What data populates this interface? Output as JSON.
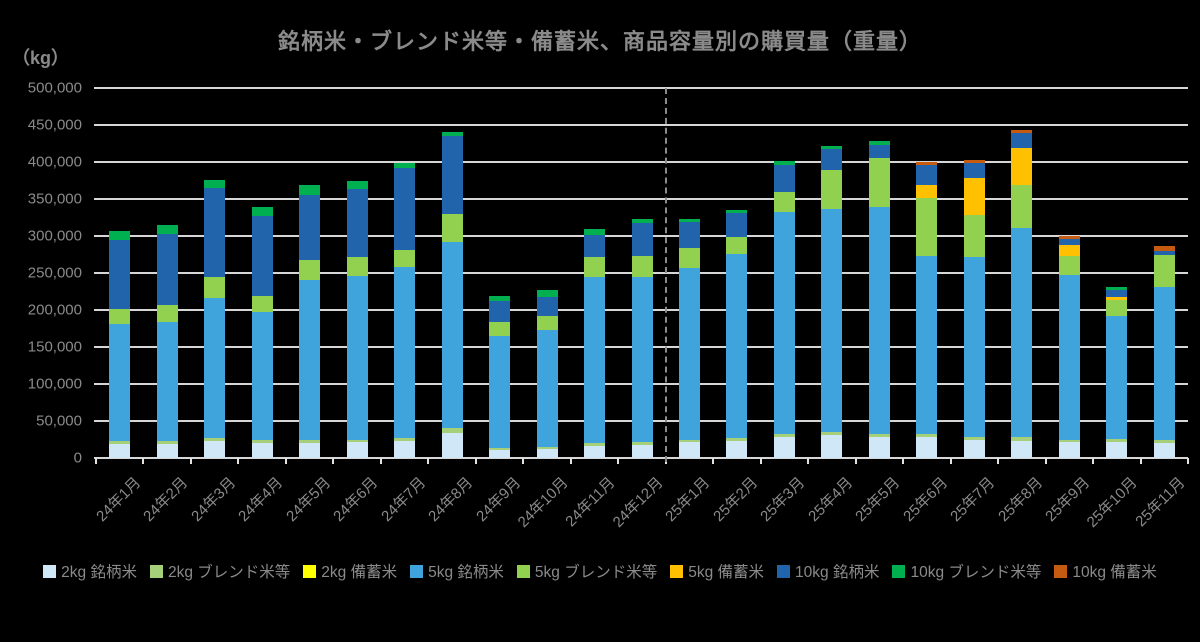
{
  "title": "銘柄米・ブレンド米等・備蓄米、商品容量別の購買量（重量）",
  "unit_label": "（kg）",
  "colors": {
    "background": "#000000",
    "text_gray": "#8a8a8a",
    "gridline": "#d6d6d6",
    "separator_line": "#8c8c8c"
  },
  "chart_data": {
    "type": "bar",
    "stacked": true,
    "title": "銘柄米・ブレンド米等・備蓄米、商品容量別の購買量（重量）",
    "unit_label": "（kg）",
    "xlabel": "",
    "ylabel": "kg",
    "ylim": [
      0,
      500000
    ],
    "y_ticks": [
      0,
      50000,
      100000,
      150000,
      200000,
      250000,
      300000,
      350000,
      400000,
      450000,
      500000
    ],
    "grid": true,
    "legend_position": "bottom",
    "separator_after_category": "24年12月",
    "categories": [
      "24年1月",
      "24年2月",
      "24年3月",
      "24年4月",
      "24年5月",
      "24年6月",
      "24年7月",
      "24年8月",
      "24年9月",
      "24年10月",
      "24年11月",
      "24年12月",
      "25年1月",
      "25年2月",
      "25年3月",
      "25年4月",
      "25年5月",
      "25年6月",
      "25年7月",
      "25年8月",
      "25年9月",
      "25年10月",
      "25年11月"
    ],
    "series": [
      {
        "name": "2kg 銘柄米",
        "color": "#cfe7f7",
        "values": [
          19000,
          19000,
          22500,
          20000,
          20000,
          21000,
          22500,
          34000,
          11000,
          12000,
          16000,
          18000,
          21000,
          23000,
          28000,
          31000,
          29000,
          28000,
          24000,
          23000,
          21000,
          21000,
          20000
        ]
      },
      {
        "name": "2kg ブレンド米等",
        "color": "#a6cf7a",
        "values": [
          4500,
          4500,
          4500,
          4500,
          4000,
          4000,
          4000,
          7000,
          3000,
          3500,
          4000,
          4000,
          4000,
          3500,
          4000,
          4000,
          4000,
          4000,
          5000,
          6000,
          4000,
          5000,
          5000
        ]
      },
      {
        "name": "2kg 備蓄米",
        "color": "#ffff00",
        "values": [
          0,
          0,
          0,
          0,
          0,
          0,
          0,
          0,
          0,
          0,
          0,
          0,
          0,
          0,
          0,
          0,
          0,
          0,
          0,
          0,
          0,
          0,
          0
        ]
      },
      {
        "name": "5kg 銘柄米",
        "color": "#3fa4dc",
        "values": [
          158000,
          160000,
          189000,
          172500,
          216000,
          221500,
          231000,
          251000,
          151000,
          158000,
          225000,
          223000,
          232000,
          249000,
          301000,
          302000,
          306000,
          241000,
          243000,
          282000,
          222000,
          166000,
          206000
        ]
      },
      {
        "name": "5kg ブレンド米等",
        "color": "#92d050",
        "values": [
          20000,
          23000,
          28000,
          22500,
          27000,
          24500,
          24000,
          38000,
          19000,
          19000,
          26000,
          28000,
          26500,
          23000,
          27000,
          52000,
          66000,
          78000,
          56000,
          58000,
          26000,
          22000,
          43000
        ]
      },
      {
        "name": "5kg 備蓄米",
        "color": "#ffc000",
        "values": [
          0,
          0,
          0,
          0,
          0,
          0,
          0,
          0,
          0,
          0,
          0,
          0,
          0,
          0,
          0,
          0,
          0,
          18000,
          50000,
          50000,
          15000,
          3000,
          0
        ]
      },
      {
        "name": "10kg 銘柄米",
        "color": "#2164ac",
        "values": [
          93000,
          96000,
          121000,
          108000,
          88000,
          93000,
          111000,
          105000,
          28000,
          25000,
          31000,
          44000,
          35000,
          32000,
          36000,
          28000,
          18000,
          27000,
          21000,
          20000,
          8000,
          10000,
          6000
        ]
      },
      {
        "name": "10kg ブレンド米等",
        "color": "#00b050",
        "values": [
          12000,
          12000,
          11000,
          12000,
          13500,
          11000,
          6000,
          6000,
          7000,
          10000,
          7000,
          6000,
          5000,
          5000,
          5000,
          5000,
          5000,
          0,
          0,
          0,
          0,
          4000,
          0
        ]
      },
      {
        "name": "10kg 備蓄米",
        "color": "#c55a11",
        "values": [
          0,
          0,
          0,
          0,
          0,
          0,
          0,
          0,
          0,
          0,
          0,
          0,
          0,
          0,
          0,
          0,
          0,
          3500,
          4000,
          4500,
          3500,
          0,
          6000
        ]
      }
    ]
  }
}
